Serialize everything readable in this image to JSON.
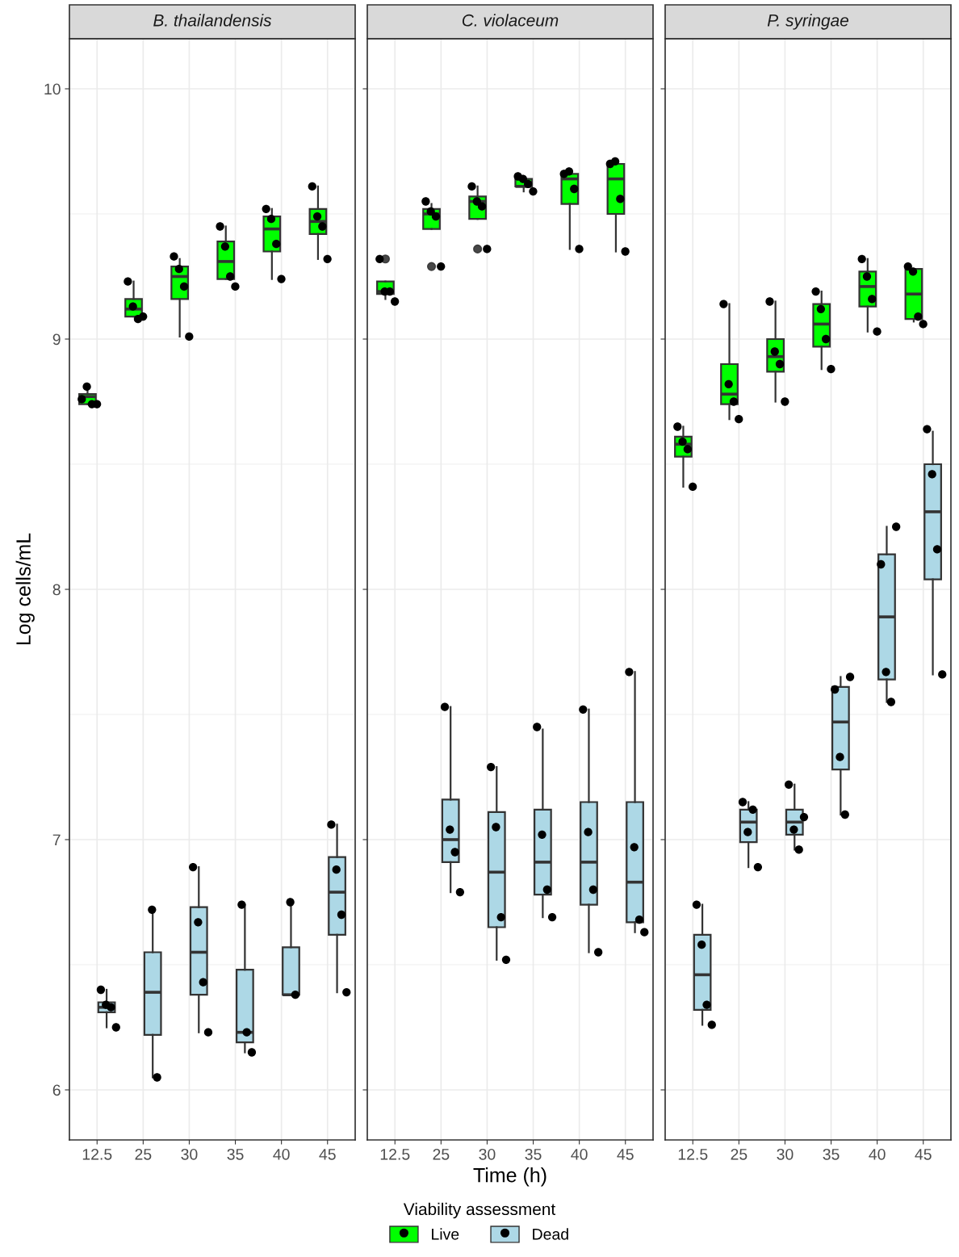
{
  "chart_data": [
    {
      "type": "box",
      "title": "B. thailandensis",
      "ylabel": "Log cells/mL",
      "categories": [
        "12.5",
        "25",
        "30",
        "35",
        "40",
        "45"
      ],
      "ylim": [
        5.8,
        10.2
      ],
      "yticks": [
        6,
        7,
        8,
        9,
        10
      ],
      "grid": true,
      "marker": "circle",
      "legend": "bottom",
      "legend_title": "Viability assessment",
      "series": [
        {
          "name": "Live",
          "color": "#00ff00",
          "boxes": [
            {
              "low": 8.74,
              "q1": 8.74,
              "median": 8.77,
              "q3": 8.78,
              "high": 8.81
            },
            {
              "low": 9.09,
              "q1": 9.09,
              "median": 9.12,
              "q3": 9.16,
              "high": 9.23
            },
            {
              "low": 9.01,
              "q1": 9.16,
              "median": 9.25,
              "q3": 9.29,
              "high": 9.32
            },
            {
              "low": 9.24,
              "q1": 9.24,
              "median": 9.31,
              "q3": 9.39,
              "high": 9.45
            },
            {
              "low": 9.24,
              "q1": 9.35,
              "median": 9.44,
              "q3": 9.49,
              "high": 9.52
            },
            {
              "low": 9.32,
              "q1": 9.42,
              "median": 9.47,
              "q3": 9.52,
              "high": 9.61
            }
          ]
        },
        {
          "name": "Dead",
          "color": "#add8e6",
          "boxes": [
            {
              "low": 6.25,
              "q1": 6.31,
              "median": 6.33,
              "q3": 6.35,
              "high": 6.4
            },
            {
              "low": 6.05,
              "q1": 6.22,
              "median": 6.39,
              "q3": 6.55,
              "high": 6.72
            },
            {
              "low": 6.23,
              "q1": 6.38,
              "median": 6.55,
              "q3": 6.73,
              "high": 6.89
            },
            {
              "low": 6.15,
              "q1": 6.19,
              "median": 6.23,
              "q3": 6.48,
              "high": 6.74
            },
            {
              "low": 6.38,
              "q1": 6.38,
              "median": 6.38,
              "q3": 6.57,
              "high": 6.75
            },
            {
              "low": 6.39,
              "q1": 6.62,
              "median": 6.79,
              "q3": 6.93,
              "high": 7.06
            }
          ]
        },
        {
          "type": "scatter",
          "color": "#000000",
          "x": [
            "12.5",
            "12.5",
            "12.5",
            "12.5",
            "25",
            "25",
            "25",
            "25",
            "30",
            "30",
            "30",
            "30",
            "35",
            "35",
            "35",
            "35",
            "40",
            "40",
            "40",
            "40",
            "45",
            "45",
            "45",
            "45"
          ],
          "values": [
            8.76,
            8.81,
            8.74,
            8.74,
            9.23,
            9.13,
            9.08,
            9.09,
            9.33,
            9.28,
            9.21,
            9.01,
            9.45,
            9.37,
            9.25,
            9.21,
            9.52,
            9.48,
            9.38,
            9.24,
            9.61,
            9.49,
            9.45,
            9.32
          ]
        },
        {
          "type": "scatter",
          "color": "#000000",
          "x": [
            "12.5",
            "12.5",
            "12.5",
            "12.5",
            "25",
            "25",
            "30",
            "30",
            "30",
            "30",
            "35",
            "35",
            "35",
            "40",
            "40",
            "45",
            "45",
            "45",
            "45"
          ],
          "values": [
            6.4,
            6.34,
            6.33,
            6.25,
            6.72,
            6.05,
            6.89,
            6.67,
            6.43,
            6.23,
            6.74,
            6.23,
            6.15,
            6.75,
            6.38,
            7.06,
            6.88,
            6.7,
            6.39
          ]
        }
      ]
    },
    {
      "type": "box",
      "title": "C. violaceum",
      "xlabel": "Time (h)",
      "categories": [
        "12.5",
        "25",
        "30",
        "35",
        "40",
        "45"
      ],
      "ylim": [
        5.8,
        10.2
      ],
      "yticks": [
        6,
        7,
        8,
        9,
        10
      ],
      "grid": true,
      "marker": "circle",
      "tick_labels": "x",
      "series": [
        {
          "name": "Live",
          "color": "#00ff00",
          "boxes": [
            {
              "low": 9.16,
              "q1": 9.18,
              "median": 9.19,
              "q3": 9.23,
              "high": 9.23,
              "outliers": [
                9.32
              ]
            },
            {
              "low": 9.44,
              "q1": 9.44,
              "median": 9.5,
              "q3": 9.52,
              "high": 9.54,
              "outliers": [
                9.29
              ]
            },
            {
              "low": 9.48,
              "q1": 9.48,
              "median": 9.55,
              "q3": 9.57,
              "high": 9.61,
              "outliers": [
                9.36
              ]
            },
            {
              "low": 9.59,
              "q1": 9.61,
              "median": 9.61,
              "q3": 9.64,
              "high": 9.64
            },
            {
              "low": 9.36,
              "q1": 9.54,
              "median": 9.64,
              "q3": 9.66,
              "high": 9.66
            },
            {
              "low": 9.35,
              "q1": 9.5,
              "median": 9.64,
              "q3": 9.7,
              "high": 9.7
            }
          ]
        },
        {
          "name": "Dead",
          "color": "#add8e6",
          "boxes": [
            null,
            {
              "low": 6.79,
              "q1": 6.91,
              "median": 7.0,
              "q3": 7.16,
              "high": 7.53
            },
            {
              "low": 6.52,
              "q1": 6.65,
              "median": 6.87,
              "q3": 7.11,
              "high": 7.29
            },
            {
              "low": 6.69,
              "q1": 6.78,
              "median": 6.91,
              "q3": 7.12,
              "high": 7.44
            },
            {
              "low": 6.55,
              "q1": 6.74,
              "median": 6.91,
              "q3": 7.15,
              "high": 7.52
            },
            {
              "low": 6.63,
              "q1": 6.67,
              "median": 6.83,
              "q3": 7.15,
              "high": 7.67
            }
          ]
        },
        {
          "type": "scatter",
          "color": "#000000",
          "x": [
            "12.5",
            "12.5",
            "12.5",
            "12.5",
            "25",
            "25",
            "25",
            "25",
            "30",
            "30",
            "30",
            "30",
            "35",
            "35",
            "35",
            "35",
            "40",
            "40",
            "40",
            "40",
            "45",
            "45",
            "45",
            "45"
          ],
          "values": [
            9.32,
            9.19,
            9.19,
            9.15,
            9.55,
            9.51,
            9.49,
            9.29,
            9.61,
            9.55,
            9.53,
            9.36,
            9.65,
            9.64,
            9.62,
            9.59,
            9.66,
            9.67,
            9.6,
            9.36,
            9.7,
            9.71,
            9.56,
            9.35
          ]
        },
        {
          "type": "scatter",
          "color": "#000000",
          "x": [
            "25",
            "25",
            "25",
            "25",
            "30",
            "30",
            "30",
            "30",
            "35",
            "35",
            "35",
            "35",
            "40",
            "40",
            "40",
            "40",
            "45",
            "45",
            "45",
            "45"
          ],
          "values": [
            7.53,
            7.04,
            6.95,
            6.79,
            7.29,
            7.05,
            6.69,
            6.52,
            7.45,
            7.02,
            6.8,
            6.69,
            7.52,
            7.03,
            6.8,
            6.55,
            7.67,
            6.97,
            6.68,
            6.63
          ]
        }
      ]
    },
    {
      "type": "box",
      "title": "P. syringae",
      "categories": [
        "12.5",
        "25",
        "30",
        "35",
        "40",
        "45"
      ],
      "ylim": [
        5.8,
        10.2
      ],
      "yticks": [
        6,
        7,
        8,
        9,
        10
      ],
      "grid": true,
      "marker": "circle",
      "tick_labels": "x",
      "series": [
        {
          "name": "Live",
          "color": "#00ff00",
          "boxes": [
            {
              "low": 8.41,
              "q1": 8.53,
              "median": 8.58,
              "q3": 8.61,
              "high": 8.65
            },
            {
              "low": 8.68,
              "q1": 8.74,
              "median": 8.78,
              "q3": 8.9,
              "high": 9.14
            },
            {
              "low": 8.75,
              "q1": 8.87,
              "median": 8.93,
              "q3": 9.0,
              "high": 9.15
            },
            {
              "low": 8.88,
              "q1": 8.97,
              "median": 9.06,
              "q3": 9.14,
              "high": 9.19
            },
            {
              "low": 9.03,
              "q1": 9.13,
              "median": 9.21,
              "q3": 9.27,
              "high": 9.32
            },
            {
              "low": 9.07,
              "q1": 9.08,
              "median": 9.18,
              "q3": 9.28,
              "high": 9.28
            }
          ]
        },
        {
          "name": "Dead",
          "color": "#add8e6",
          "boxes": [
            {
              "low": 6.26,
              "q1": 6.32,
              "median": 6.46,
              "q3": 6.62,
              "high": 6.74
            },
            {
              "low": 6.89,
              "q1": 6.99,
              "median": 7.07,
              "q3": 7.12,
              "high": 7.15
            },
            {
              "low": 6.96,
              "q1": 7.02,
              "median": 7.07,
              "q3": 7.12,
              "high": 7.22
            },
            {
              "low": 7.1,
              "q1": 7.28,
              "median": 7.47,
              "q3": 7.61,
              "high": 7.65
            },
            {
              "low": 7.55,
              "q1": 7.64,
              "median": 7.89,
              "q3": 8.14,
              "high": 8.25
            },
            {
              "low": 7.66,
              "q1": 8.04,
              "median": 8.31,
              "q3": 8.5,
              "high": 8.63
            }
          ]
        },
        {
          "type": "scatter",
          "color": "#000000",
          "x": [
            "12.5",
            "12.5",
            "12.5",
            "12.5",
            "25",
            "25",
            "25",
            "25",
            "30",
            "30",
            "30",
            "30",
            "35",
            "35",
            "35",
            "35",
            "40",
            "40",
            "40",
            "40",
            "45",
            "45",
            "45",
            "45"
          ],
          "values": [
            8.65,
            8.59,
            8.56,
            8.41,
            9.14,
            8.82,
            8.75,
            8.68,
            9.15,
            8.95,
            8.9,
            8.75,
            9.19,
            9.12,
            9.0,
            8.88,
            9.32,
            9.25,
            9.16,
            9.03,
            9.29,
            9.27,
            9.09,
            9.06
          ]
        },
        {
          "type": "scatter",
          "color": "#000000",
          "x": [
            "12.5",
            "12.5",
            "12.5",
            "12.5",
            "25",
            "25",
            "25",
            "25",
            "30",
            "30",
            "30",
            "30",
            "35",
            "35",
            "35",
            "35",
            "40",
            "40",
            "40",
            "40",
            "45",
            "45",
            "45",
            "45"
          ],
          "values": [
            6.74,
            6.58,
            6.34,
            6.26,
            7.15,
            7.03,
            7.12,
            6.89,
            7.22,
            7.04,
            6.96,
            7.09,
            7.6,
            7.33,
            7.1,
            7.65,
            8.1,
            7.67,
            7.55,
            8.25,
            8.64,
            8.46,
            8.16,
            7.66
          ]
        }
      ]
    }
  ]
}
